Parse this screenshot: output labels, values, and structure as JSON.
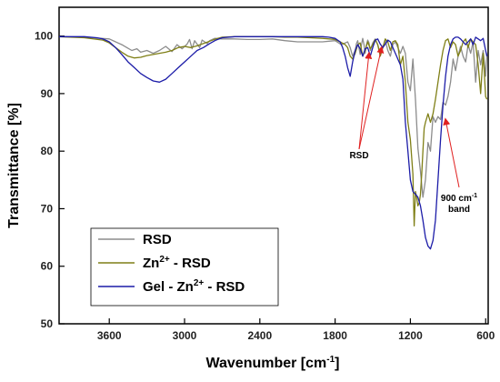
{
  "chart_data": {
    "type": "line",
    "xlabel": "Wavenumber [cm",
    "xlabel_sup": "-1",
    "xlabel_suffix": "]",
    "ylabel": "Transmittance [%]",
    "xlim": [
      4000,
      580
    ],
    "ylim": [
      50,
      105
    ],
    "x_ticks": [
      3600,
      3000,
      2400,
      1800,
      1200,
      600
    ],
    "y_ticks": [
      50,
      60,
      70,
      80,
      90,
      100
    ],
    "grid": false,
    "legend_position": "bottom-left",
    "series": [
      {
        "name": "RSD",
        "legend": {
          "prefix": "RSD",
          "sup1": "",
          "mid": "",
          "sup2": "",
          "suffix": ""
        },
        "color": "#8c8c8c",
        "x": [
          4000,
          3800,
          3600,
          3500,
          3460,
          3420,
          3380,
          3350,
          3300,
          3250,
          3200,
          3150,
          3100,
          3060,
          3020,
          2980,
          2960,
          2940,
          2920,
          2900,
          2880,
          2860,
          2840,
          2820,
          2800,
          2760,
          2700,
          2600,
          2500,
          2400,
          2300,
          2200,
          2100,
          2000,
          1900,
          1800,
          1750,
          1700,
          1680,
          1660,
          1640,
          1630,
          1620,
          1610,
          1600,
          1590,
          1580,
          1570,
          1560,
          1550,
          1540,
          1530,
          1520,
          1500,
          1480,
          1460,
          1440,
          1420,
          1400,
          1380,
          1360,
          1340,
          1320,
          1300,
          1280,
          1260,
          1240,
          1220,
          1200,
          1180,
          1160,
          1140,
          1120,
          1100,
          1080,
          1060,
          1040,
          1020,
          1000,
          980,
          960,
          940,
          920,
          900,
          880,
          860,
          840,
          820,
          800,
          780,
          760,
          740,
          720,
          700,
          680,
          660,
          640,
          620,
          600,
          590
        ],
        "y": [
          99.9,
          99.8,
          99.5,
          98.5,
          98.0,
          97.5,
          97.8,
          97.2,
          97.5,
          97.0,
          97.5,
          98.2,
          97.3,
          98.5,
          97.8,
          98.6,
          99.4,
          97.8,
          99.2,
          98.6,
          98.0,
          99.3,
          99.0,
          98.7,
          99.2,
          99.6,
          99.5,
          99.5,
          99.4,
          99.4,
          99.5,
          99.2,
          99.0,
          99.0,
          99.0,
          99.2,
          98.5,
          99.0,
          98.0,
          96.5,
          97.5,
          98.7,
          99.2,
          98.0,
          96.8,
          98.5,
          99.6,
          98.5,
          97.0,
          98.5,
          99.3,
          98.8,
          97.5,
          98.8,
          99.5,
          98.5,
          97.0,
          98.0,
          99.3,
          97.5,
          96.5,
          98.5,
          99.0,
          98.0,
          97.0,
          98.2,
          97.0,
          92.0,
          90.5,
          96.0,
          89.0,
          80.5,
          76.5,
          72.0,
          75.0,
          81.5,
          80.0,
          86.0,
          85.0,
          86.0,
          85.5,
          88.5,
          88.0,
          89.5,
          92.0,
          96.0,
          94.0,
          96.5,
          98.2,
          96.5,
          95.5,
          98.5,
          97.0,
          99.0,
          92.0,
          97.5,
          95.0,
          97.5,
          93.0,
          97.0
        ]
      },
      {
        "name": "Zn2+ - RSD",
        "legend": {
          "prefix": "Zn",
          "sup1": "2+",
          "mid": " - RSD",
          "sup2": "",
          "suffix": ""
        },
        "color": "#7f7f16",
        "x": [
          4000,
          3800,
          3650,
          3600,
          3550,
          3500,
          3450,
          3400,
          3350,
          3300,
          3250,
          3200,
          3150,
          3100,
          3050,
          3000,
          2950,
          2900,
          2850,
          2800,
          2750,
          2700,
          2600,
          2500,
          2400,
          2300,
          2200,
          2100,
          2000,
          1900,
          1800,
          1760,
          1720,
          1700,
          1680,
          1660,
          1640,
          1620,
          1600,
          1580,
          1560,
          1540,
          1520,
          1500,
          1480,
          1460,
          1440,
          1420,
          1400,
          1380,
          1360,
          1340,
          1320,
          1300,
          1280,
          1260,
          1240,
          1220,
          1200,
          1180,
          1170,
          1160,
          1150,
          1140,
          1130,
          1120,
          1110,
          1100,
          1090,
          1080,
          1060,
          1040,
          1020,
          1000,
          980,
          960,
          940,
          920,
          900,
          880,
          860,
          840,
          820,
          800,
          780,
          760,
          740,
          720,
          700,
          680,
          660,
          640,
          620,
          600,
          590
        ],
        "y": [
          99.9,
          99.7,
          99.3,
          98.8,
          98.0,
          97.2,
          96.5,
          96.2,
          96.3,
          96.6,
          96.8,
          97.0,
          97.2,
          97.5,
          98.0,
          98.2,
          98.0,
          98.3,
          98.7,
          99.1,
          99.5,
          99.8,
          99.9,
          99.9,
          99.9,
          99.9,
          99.8,
          99.8,
          99.7,
          99.6,
          99.4,
          99.0,
          98.5,
          98.0,
          96.5,
          96.0,
          97.0,
          98.5,
          98.8,
          96.5,
          97.5,
          99.0,
          97.8,
          98.5,
          99.4,
          98.5,
          96.5,
          98.0,
          99.5,
          99.0,
          97.5,
          99.0,
          99.2,
          98.5,
          95.0,
          96.5,
          92.0,
          85.0,
          82.0,
          76.0,
          67.0,
          73.0,
          72.0,
          70.5,
          71.0,
          72.5,
          76.0,
          80.0,
          84.0,
          85.0,
          86.5,
          85.0,
          86.5,
          89.0,
          92.0,
          95.0,
          97.5,
          99.2,
          99.5,
          98.0,
          99.0,
          98.5,
          96.5,
          97.5,
          99.0,
          99.5,
          98.0,
          99.5,
          99.0,
          98.5,
          95.0,
          90.0,
          97.0,
          89.5,
          89.0
        ]
      },
      {
        "name": "Gel - Zn2+ - RSD",
        "legend": {
          "prefix": "Gel - Zn",
          "sup1": "2+",
          "mid": " - RSD",
          "sup2": "",
          "suffix": ""
        },
        "color": "#1c1ca8",
        "x": [
          4000,
          3800,
          3700,
          3650,
          3600,
          3550,
          3500,
          3450,
          3400,
          3350,
          3300,
          3250,
          3200,
          3150,
          3100,
          3050,
          3000,
          2950,
          2900,
          2850,
          2800,
          2750,
          2700,
          2600,
          2500,
          2400,
          2300,
          2200,
          2100,
          2000,
          1900,
          1850,
          1800,
          1760,
          1740,
          1720,
          1700,
          1680,
          1660,
          1640,
          1620,
          1600,
          1580,
          1560,
          1540,
          1520,
          1500,
          1480,
          1460,
          1440,
          1420,
          1400,
          1380,
          1360,
          1340,
          1320,
          1300,
          1280,
          1260,
          1240,
          1220,
          1200,
          1180,
          1160,
          1140,
          1120,
          1100,
          1080,
          1060,
          1040,
          1020,
          1000,
          980,
          960,
          940,
          920,
          900,
          880,
          860,
          840,
          820,
          800,
          780,
          760,
          740,
          720,
          700,
          680,
          660,
          640,
          620,
          600,
          590
        ],
        "y": [
          99.9,
          99.9,
          99.7,
          99.5,
          99.0,
          98.0,
          96.8,
          95.5,
          94.5,
          93.5,
          92.8,
          92.2,
          92.0,
          92.5,
          93.5,
          94.5,
          95.5,
          96.5,
          97.5,
          98.0,
          98.7,
          99.3,
          99.7,
          99.9,
          99.9,
          99.9,
          99.9,
          99.9,
          99.9,
          99.9,
          99.9,
          99.8,
          99.6,
          99.0,
          98.0,
          96.5,
          94.5,
          93.0,
          95.5,
          97.5,
          98.5,
          97.8,
          96.5,
          97.8,
          98.0,
          96.5,
          98.0,
          99.3,
          99.5,
          98.6,
          98.0,
          98.6,
          99.3,
          99.0,
          98.0,
          97.0,
          96.0,
          95.0,
          92.5,
          85.0,
          80.0,
          75.0,
          73.0,
          72.5,
          72.0,
          70.5,
          68.0,
          65.0,
          63.5,
          63.0,
          64.5,
          68.0,
          75.0,
          82.0,
          88.0,
          93.0,
          96.5,
          98.5,
          99.5,
          99.8,
          99.8,
          99.5,
          99.0,
          98.5,
          99.0,
          99.5,
          98.5,
          99.8,
          99.5,
          99.2,
          99.6,
          97.5,
          96.5
        ]
      }
    ],
    "annotations": [
      {
        "text_lines": [
          "RSD"
        ],
        "arrow_targets": [
          [
            1430,
            98.0
          ],
          [
            1530,
            97.0
          ]
        ]
      },
      {
        "text_lines": [
          "900 cm",
          "band"
        ],
        "text_sup": "-1",
        "arrow_targets": [
          [
            920,
            85.5
          ]
        ]
      }
    ]
  }
}
